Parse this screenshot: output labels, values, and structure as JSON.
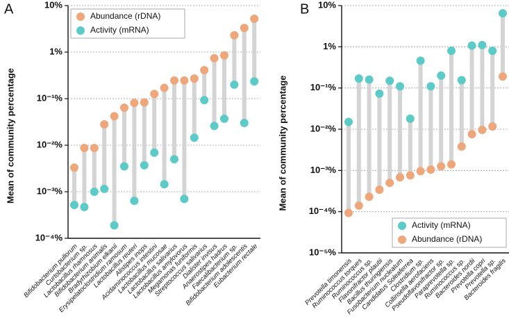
{
  "chart_data": [
    {
      "type": "dumbbell",
      "panel_label": "A",
      "ylabel": "Mean of community percentage",
      "log_scale": true,
      "grid": true,
      "legend": "upper left",
      "categories": [
        "Bifidobacterium pullorum",
        "Curtobacterium sp.",
        "Lactobacillus rhamnosus",
        "Bifidobacterium animalis",
        "Bradyrhizobium elkanii",
        "Erysipelatoclostridium ramosum",
        "Lactobacillus reuteri",
        "Alistipes inops",
        "Acidaminococcus intestini",
        "Lactobacillus mucosae",
        "Lactobacillus salivarius",
        "Lactobacillus amylovorus",
        "Megamonas funiformis",
        "Streptococcus salivarius",
        "Dialister invisus",
        "Anaerostipes hadrus",
        "Faecalibacterium sp.",
        "Bifidobacterium adolescentis",
        "Eubacterium rectale"
      ],
      "series": [
        {
          "name": "Abundance (rDNA)",
          "color": "#eea77a",
          "values": [
            0.0033,
            0.0087,
            0.0087,
            0.028,
            0.042,
            0.064,
            0.081,
            0.083,
            0.126,
            0.17,
            0.245,
            0.245,
            0.27,
            0.41,
            0.74,
            0.85,
            2.3,
            3.3,
            5.2
          ]
        },
        {
          "name": "Activity (mRNA)",
          "color": "#5ccac6",
          "values": [
            0.00052,
            0.00047,
            0.001,
            0.00115,
            0.00019,
            0.0035,
            0.00064,
            0.0037,
            0.0069,
            0.00145,
            0.005,
            0.0007,
            0.0145,
            0.093,
            0.026,
            0.037,
            0.2,
            0.03,
            0.235
          ]
        }
      ],
      "ylim": [
        0.0001,
        10
      ],
      "yticks": [
        {
          "value": 0.0001,
          "label": "10⁻⁴%"
        },
        {
          "value": 0.001,
          "label": "10⁻³%"
        },
        {
          "value": 0.01,
          "label": "10⁻²%"
        },
        {
          "value": 0.1,
          "label": "10⁻¹%"
        },
        {
          "value": 1,
          "label": "1%"
        },
        {
          "value": 10,
          "label": "10%"
        }
      ]
    },
    {
      "type": "dumbbell",
      "panel_label": "B",
      "ylabel": "Mean of community percentage",
      "log_scale": true,
      "grid": true,
      "legend": "lower right",
      "categories": [
        "Prevotella timonensis",
        "Ruminococcus torques",
        "Ruminococcus sp.",
        "Flavonifractor plautii",
        "Bacillus thuringiensis",
        "Fusobacterium nucleatum",
        "Candidatus Soleaferrea",
        "Clostridium sp.",
        "Collinsella aerofaciens",
        "Pseudoflavonifractor sp.",
        "Paraprevotella sp.",
        "Ruminococcus sp.",
        "Bacteroides nordii",
        "Prevotella copri",
        "Prevotella sp.",
        "Bacteroides fragilis"
      ],
      "series": [
        {
          "name": "Activity (mRNA)",
          "color": "#5ccac6",
          "values": [
            0.015,
            0.17,
            0.16,
            0.073,
            0.15,
            0.11,
            0.018,
            0.46,
            0.11,
            0.2,
            0.8,
            0.155,
            1.07,
            1.1,
            0.8,
            6.5
          ]
        },
        {
          "name": "Abundance (rDNA)",
          "color": "#eea77a",
          "values": [
            9.3e-05,
            0.00014,
            0.00023,
            0.00034,
            0.0005,
            0.00068,
            0.00076,
            0.00096,
            0.00105,
            0.00126,
            0.0014,
            0.0038,
            0.0076,
            0.0096,
            0.0117,
            0.19
          ]
        }
      ],
      "ylim": [
        1e-05,
        10
      ],
      "yticks": [
        {
          "value": 1e-05,
          "label": "10⁻⁵%"
        },
        {
          "value": 0.0001,
          "label": "10⁻⁴%"
        },
        {
          "value": 0.001,
          "label": "10⁻³%"
        },
        {
          "value": 0.01,
          "label": "10⁻²%"
        },
        {
          "value": 0.1,
          "label": "10⁻¹%"
        },
        {
          "value": 1,
          "label": "1%"
        },
        {
          "value": 10,
          "label": "10%"
        }
      ]
    }
  ]
}
